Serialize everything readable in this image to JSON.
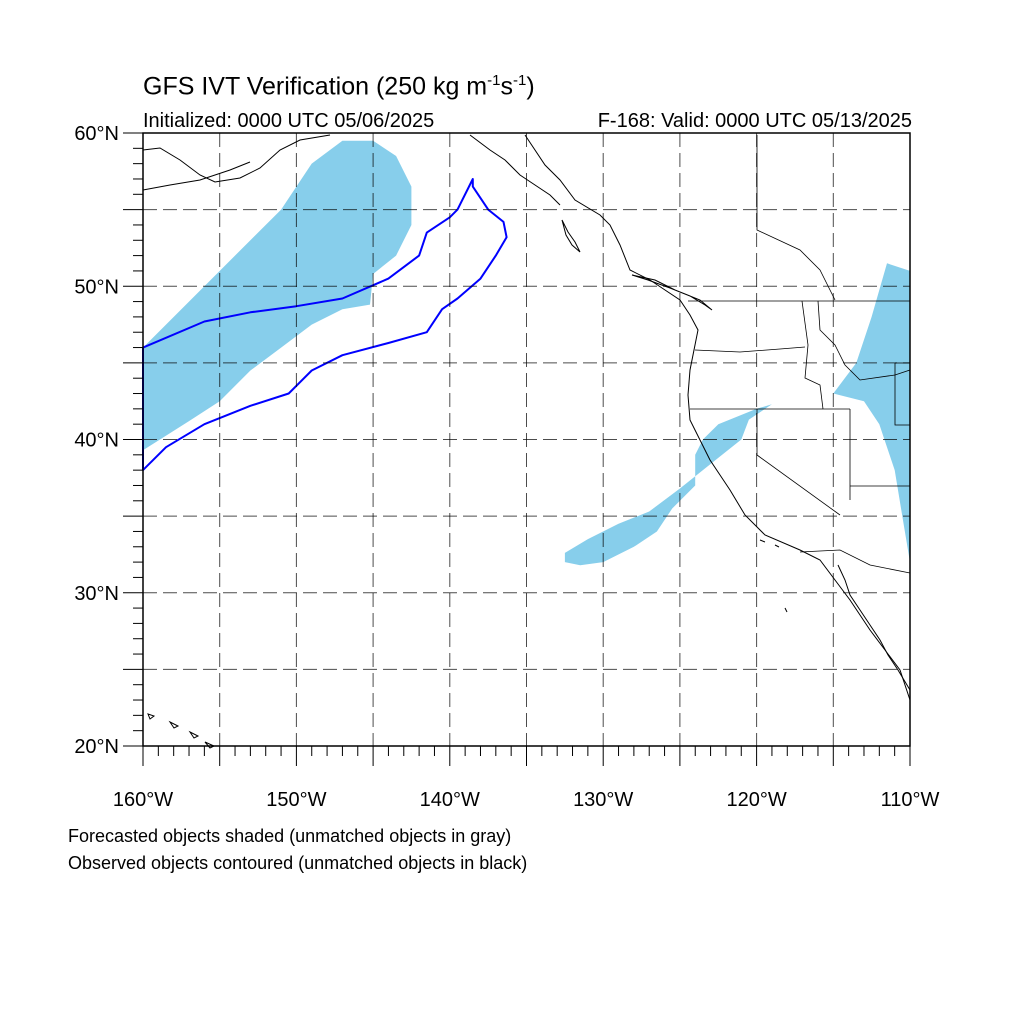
{
  "title_main": "GFS IVT Verification (250 kg m",
  "title_sup1": "-1",
  "title_mid": "s",
  "title_sup2": "-1",
  "title_end": ")",
  "subtitle_left": "Initialized: 0000 UTC 05/06/2025",
  "subtitle_right": "F-168: Valid: 0000 UTC 05/13/2025",
  "footnotes": [
    "Forecasted objects shaded (unmatched objects in gray)",
    "Observed objects contoured (unmatched objects in black)"
  ],
  "lat_labels": [
    {
      "lat": 60,
      "text": "60°N"
    },
    {
      "lat": 50,
      "text": "50°N"
    },
    {
      "lat": 40,
      "text": "40°N"
    },
    {
      "lat": 30,
      "text": "30°N"
    },
    {
      "lat": 20,
      "text": "20°N"
    }
  ],
  "lon_labels": [
    {
      "lon": -160,
      "text": "160°W"
    },
    {
      "lon": -150,
      "text": "150°W"
    },
    {
      "lon": -140,
      "text": "140°W"
    },
    {
      "lon": -130,
      "text": "130°W"
    },
    {
      "lon": -120,
      "text": "120°W"
    },
    {
      "lon": -110,
      "text": "110°W"
    }
  ],
  "extent": {
    "lon_min": -160,
    "lon_max": -110,
    "lat_min": 20,
    "lat_max": 60
  },
  "colors": {
    "forecast_fill": "#87ceeb",
    "observed_contour": "#0000ff",
    "coastline": "#000000",
    "grid": "#000000"
  },
  "forecast_objects": [
    {
      "name": "northwest-pacific",
      "points": [
        [
          -160,
          46
        ],
        [
          -157,
          49
        ],
        [
          -154,
          52
        ],
        [
          -151,
          55
        ],
        [
          -149,
          58
        ],
        [
          -147,
          59.5
        ],
        [
          -145,
          59.5
        ],
        [
          -143.5,
          58.5
        ],
        [
          -142.5,
          56.5
        ],
        [
          -142.5,
          54
        ],
        [
          -143.5,
          52
        ],
        [
          -145,
          50.8
        ],
        [
          -145.2,
          48.8
        ],
        [
          -147,
          48.5
        ],
        [
          -149,
          47.5
        ],
        [
          -151,
          46
        ],
        [
          -153,
          44.5
        ],
        [
          -155,
          42.5
        ],
        [
          -157,
          41.2
        ],
        [
          -160,
          39.3
        ]
      ]
    },
    {
      "name": "california-coast",
      "points": [
        [
          -132.5,
          32.6
        ],
        [
          -131,
          33.5
        ],
        [
          -129,
          34.5
        ],
        [
          -127,
          35.3
        ],
        [
          -125,
          36.8
        ],
        [
          -123.5,
          38
        ],
        [
          -121,
          40
        ],
        [
          -120.5,
          41.3
        ],
        [
          -119,
          42.3
        ],
        [
          -120,
          42
        ],
        [
          -122.5,
          41
        ],
        [
          -123.5,
          40
        ],
        [
          -124,
          39
        ],
        [
          -124,
          37
        ],
        [
          -125.5,
          35.5
        ],
        [
          -126.5,
          34
        ],
        [
          -128,
          33
        ],
        [
          -130,
          32
        ],
        [
          -131.5,
          31.8
        ],
        [
          -132.5,
          32
        ]
      ]
    },
    {
      "name": "interior-west",
      "points": [
        [
          -115,
          43
        ],
        [
          -113.5,
          45
        ],
        [
          -112.5,
          48
        ],
        [
          -111.5,
          51.5
        ],
        [
          -110,
          51
        ],
        [
          -110,
          32
        ],
        [
          -110.5,
          35
        ],
        [
          -111,
          38
        ],
        [
          -112,
          41
        ],
        [
          -113,
          42.5
        ]
      ]
    }
  ],
  "observed_objects": [
    {
      "name": "pacific-outline",
      "points": [
        [
          -160,
          38
        ],
        [
          -158.5,
          39.5
        ],
        [
          -156,
          41
        ],
        [
          -153,
          42.2
        ],
        [
          -150.5,
          43
        ],
        [
          -149,
          44.5
        ],
        [
          -147,
          45.5
        ],
        [
          -144,
          46.3
        ],
        [
          -141.5,
          47
        ],
        [
          -140.5,
          48.5
        ],
        [
          -139.5,
          49.2
        ],
        [
          -138,
          50.5
        ],
        [
          -137,
          52
        ],
        [
          -136.3,
          53.2
        ],
        [
          -136.5,
          54.2
        ],
        [
          -137.5,
          55
        ],
        [
          -138.5,
          56.5
        ],
        [
          -138.5,
          57
        ],
        [
          -139.5,
          55
        ],
        [
          -140,
          54.5
        ],
        [
          -141.5,
          53.5
        ],
        [
          -142,
          52
        ],
        [
          -144,
          50.5
        ],
        [
          -147,
          49.2
        ],
        [
          -150,
          48.7
        ],
        [
          -153,
          48.3
        ],
        [
          -156,
          47.7
        ],
        [
          -160,
          46
        ]
      ]
    }
  ]
}
